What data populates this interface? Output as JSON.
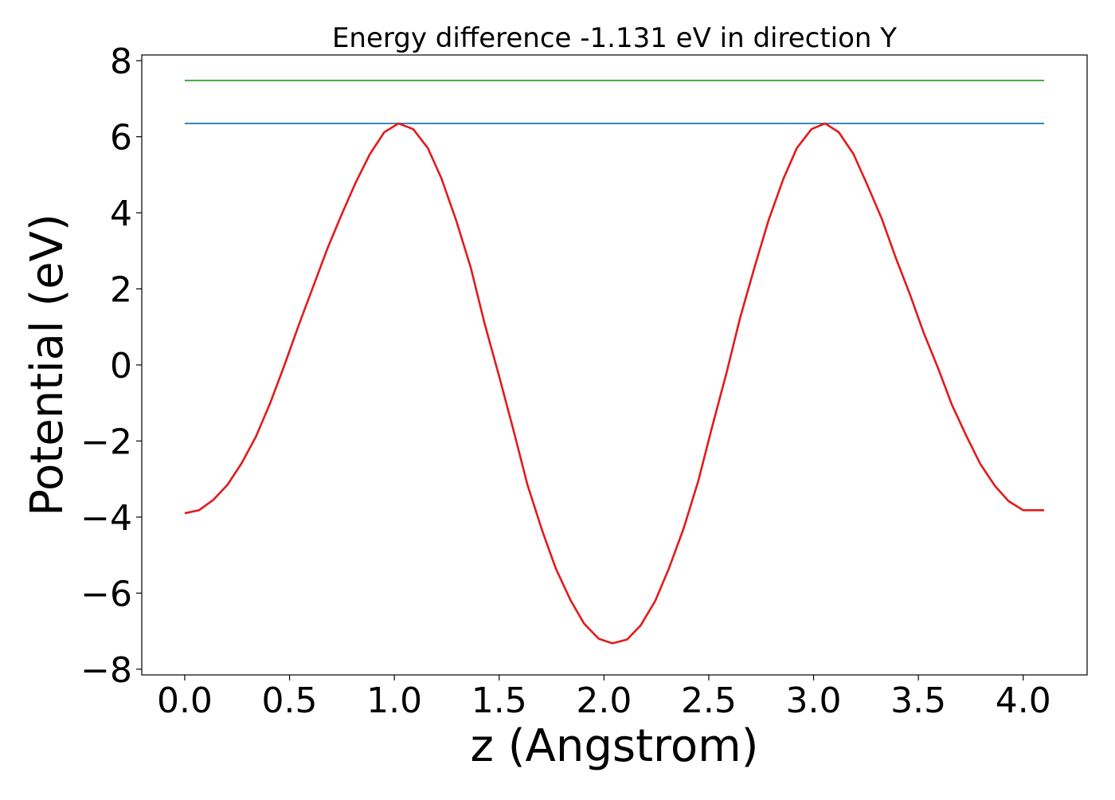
{
  "chart_data": {
    "type": "line",
    "title": "Energy difference -1.131 eV in direction Y",
    "xlabel": "z (Angstrom)",
    "ylabel": "Potential (eV)",
    "xlim": [
      -0.205,
      4.305
    ],
    "ylim": [
      -8.15,
      8.15
    ],
    "grid": false,
    "xticks": [
      0.0,
      0.5,
      1.0,
      1.5,
      2.0,
      2.5,
      3.0,
      3.5,
      4.0
    ],
    "xtick_labels": [
      "0.0",
      "0.5",
      "1.0",
      "1.5",
      "2.0",
      "2.5",
      "3.0",
      "3.5",
      "4.0"
    ],
    "yticks": [
      -8,
      -6,
      -4,
      -2,
      0,
      2,
      4,
      6,
      8
    ],
    "ytick_labels": [
      "−8",
      "−6",
      "−4",
      "−2",
      "0",
      "2",
      "4",
      "6",
      "8"
    ],
    "series": [
      {
        "color": "#2ca02c",
        "x": [
          0.0,
          4.1
        ],
        "y": [
          7.48,
          7.48
        ]
      },
      {
        "color": "#1f77b4",
        "x": [
          0.0,
          4.1
        ],
        "y": [
          6.35,
          6.35
        ]
      },
      {
        "color": "#e31a1c",
        "x": [
          0.0,
          0.068,
          0.136,
          0.204,
          0.272,
          0.34,
          0.408,
          0.476,
          0.544,
          0.612,
          0.68,
          0.748,
          0.816,
          0.884,
          0.952,
          1.02,
          1.09,
          1.16,
          1.225,
          1.295,
          1.365,
          1.43,
          1.5,
          1.57,
          1.635,
          1.705,
          1.77,
          1.84,
          1.905,
          1.975,
          2.04,
          2.11,
          2.175,
          2.245,
          2.31,
          2.38,
          2.45,
          2.515,
          2.585,
          2.65,
          2.72,
          2.785,
          2.855,
          2.92,
          2.99,
          3.055,
          3.12,
          3.19,
          3.255,
          3.325,
          3.39,
          3.46,
          3.525,
          3.595,
          3.66,
          3.73,
          3.795,
          3.865,
          3.93,
          4.0,
          4.1
        ],
        "y": [
          -3.9,
          -3.82,
          -3.55,
          -3.15,
          -2.58,
          -1.88,
          -1.0,
          0.0,
          1.05,
          2.05,
          3.05,
          3.95,
          4.8,
          5.55,
          6.12,
          6.35,
          6.2,
          5.7,
          4.9,
          3.8,
          2.55,
          1.1,
          -0.3,
          -1.75,
          -3.15,
          -4.35,
          -5.35,
          -6.18,
          -6.8,
          -7.2,
          -7.32,
          -7.22,
          -6.85,
          -6.2,
          -5.35,
          -4.3,
          -3.05,
          -1.65,
          -0.2,
          1.25,
          2.6,
          3.8,
          4.88,
          5.7,
          6.2,
          6.35,
          6.12,
          5.55,
          4.75,
          3.85,
          2.85,
          1.85,
          0.85,
          -0.1,
          -1.05,
          -1.88,
          -2.6,
          -3.18,
          -3.58,
          -3.82,
          -3.82
        ]
      }
    ]
  }
}
